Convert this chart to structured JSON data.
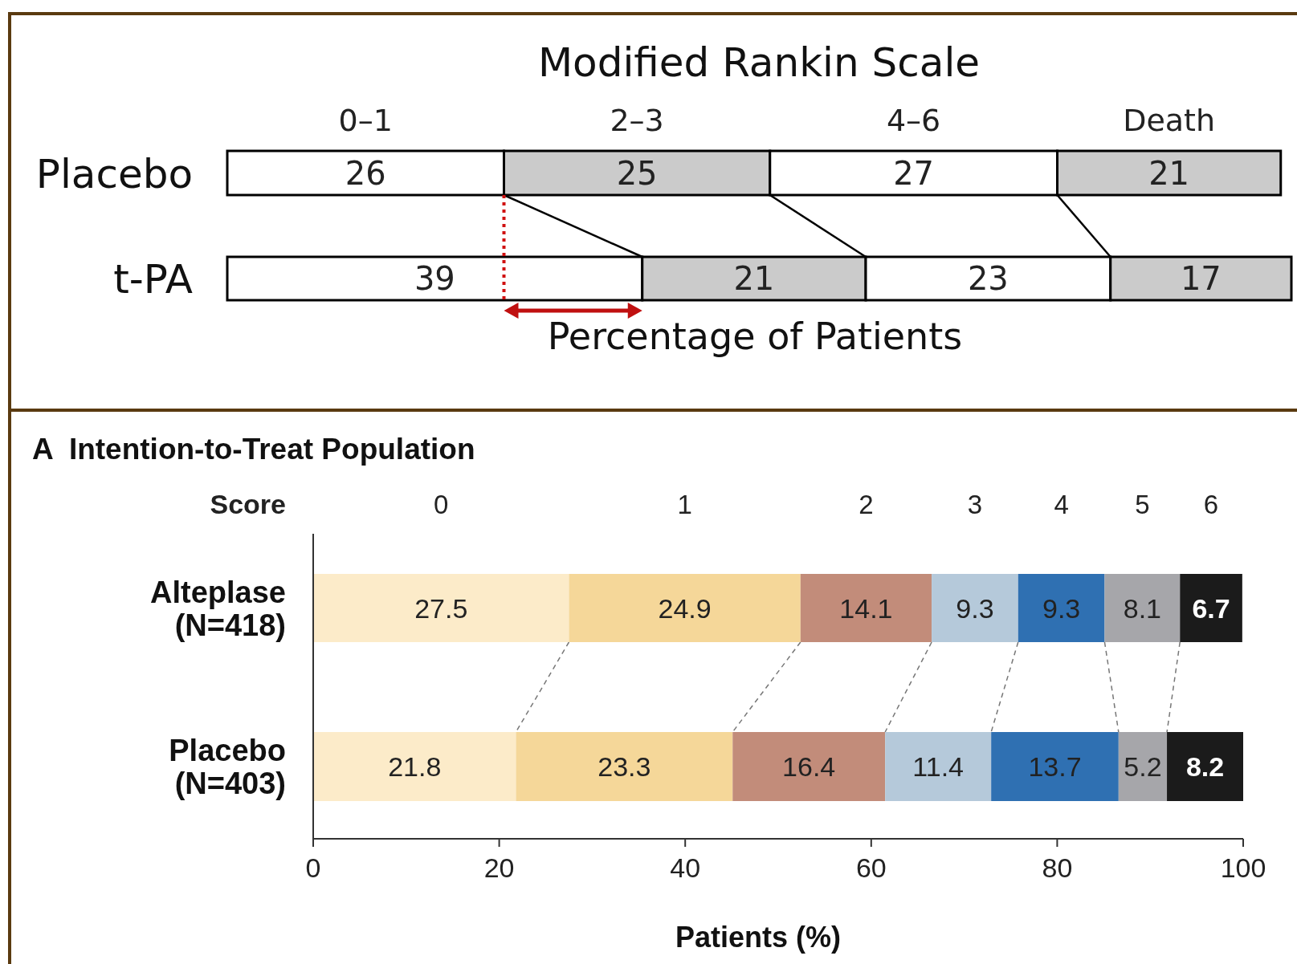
{
  "chart_data": [
    {
      "type": "bar",
      "orientation": "horizontal",
      "stacked": true,
      "title": "Modified Rankin Scale",
      "xlabel": "Percentage of Patients",
      "categories": [
        "Placebo",
        "t-PA"
      ],
      "data_labels": true,
      "tick_labels": "y",
      "series": [
        {
          "name": "0–1",
          "color": "#ffffff",
          "values": [
            26,
            39
          ]
        },
        {
          "name": "2–3",
          "color": "#cbcbcb",
          "values": [
            25,
            21
          ]
        },
        {
          "name": "4–6",
          "color": "#ffffff",
          "values": [
            27,
            23
          ]
        },
        {
          "name": "Death",
          "color": "#cbcbcb",
          "values": [
            21,
            17
          ]
        }
      ]
    },
    {
      "type": "bar",
      "orientation": "horizontal",
      "stacked": true,
      "title": "A  Intention-to-Treat Population",
      "legend_title": "Score",
      "xlabel": "Patients (%)",
      "categories": [
        "Alteplase\n(N=418)",
        "Placebo\n(N=403)"
      ],
      "xlim": [
        0,
        100
      ],
      "xticks": [
        0,
        20,
        40,
        60,
        80,
        100
      ],
      "data_labels": true,
      "series": [
        {
          "name": "0",
          "color": "#fcebc9",
          "values": [
            27.5,
            21.8
          ]
        },
        {
          "name": "1",
          "color": "#f5d799",
          "values": [
            24.9,
            23.3
          ]
        },
        {
          "name": "2",
          "color": "#c28c7a",
          "values": [
            14.1,
            16.4
          ]
        },
        {
          "name": "3",
          "color": "#b5c9da",
          "values": [
            9.3,
            11.4
          ]
        },
        {
          "name": "4",
          "color": "#2f70b2",
          "values": [
            9.3,
            13.7
          ]
        },
        {
          "name": "5",
          "color": "#a6a6aa",
          "values": [
            8.1,
            5.2
          ]
        },
        {
          "name": "6",
          "color": "#1b1b1b",
          "values": [
            6.7,
            8.2
          ]
        }
      ]
    }
  ]
}
